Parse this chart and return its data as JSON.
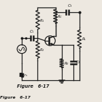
{
  "title": "Figure   6-17",
  "bg_color": "#ede8e0",
  "line_color": "#1a1a1a",
  "lw": 0.9,
  "fig_width": 1.5,
  "fig_height": 1.5,
  "dpi": 100,
  "xlim": [
    0,
    10
  ],
  "ylim": [
    0,
    11
  ]
}
